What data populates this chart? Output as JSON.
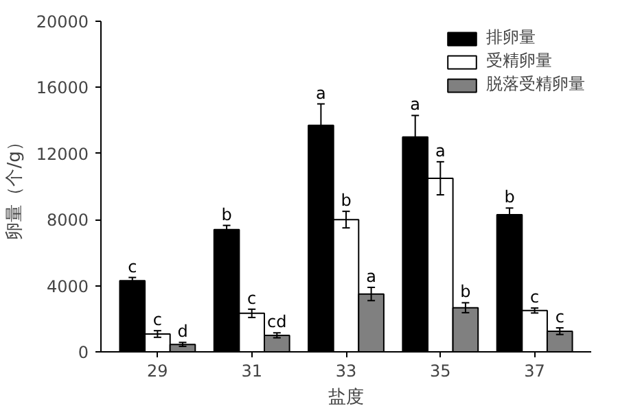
{
  "chart_data": {
    "type": "bar",
    "xlabel": "盐度",
    "ylabel": "卵量（个/g）",
    "categories": [
      "29",
      "31",
      "33",
      "35",
      "37"
    ],
    "series": [
      {
        "name": "排卵量",
        "color": "#000000",
        "values": [
          4300,
          7400,
          13700,
          13000,
          8300
        ],
        "errors": [
          200,
          250,
          1300,
          1300,
          400
        ],
        "value_labels": [
          "c",
          "b",
          "a",
          "a",
          "b"
        ]
      },
      {
        "name": "受精卵量",
        "color": "#ffffff",
        "values": [
          1080,
          2330,
          8000,
          10500,
          2500
        ],
        "errors": [
          200,
          250,
          500,
          1000,
          150
        ],
        "value_labels": [
          "c",
          "c",
          "b",
          "a",
          "c"
        ]
      },
      {
        "name": "脱落受精卵量",
        "color": "#808080",
        "values": [
          450,
          1000,
          3500,
          2670,
          1250
        ],
        "errors": [
          120,
          150,
          400,
          300,
          200
        ],
        "value_labels": [
          "d",
          "cd",
          "a",
          "b",
          "c"
        ]
      }
    ],
    "ylim": [
      0,
      20000
    ],
    "yticks": [
      0,
      4000,
      8000,
      12000,
      16000,
      20000
    ],
    "grid": false,
    "legend": "top right"
  }
}
